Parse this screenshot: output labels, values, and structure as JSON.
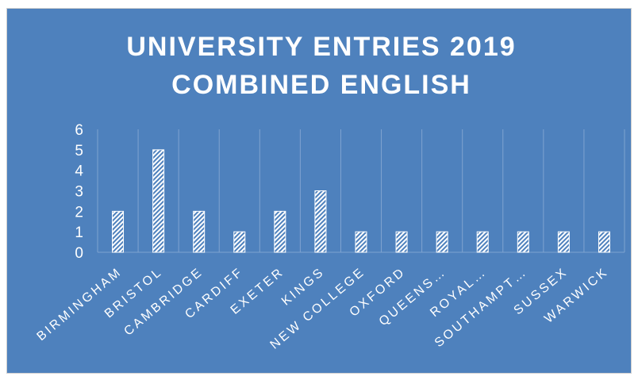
{
  "chart_data": {
    "type": "bar",
    "title_line1": "UNIVERSITY ENTRIES 2019",
    "title_line2": "COMBINED ENGLISH",
    "categories": [
      "BIRMINGHAM",
      "BRISTOL",
      "CAMBRIDGE",
      "CARDIFF",
      "EXETER",
      "KINGS",
      "NEW COLLEGE",
      "OXFORD",
      "QUEENS…",
      "ROYAL…",
      "SOUTHAMPT…",
      "SUSSEX",
      "WARWICK"
    ],
    "values": [
      2,
      5,
      2,
      1,
      2,
      3,
      1,
      1,
      1,
      1,
      1,
      1,
      1
    ],
    "ylim": [
      0,
      6
    ],
    "yticks": [
      "0",
      "1",
      "2",
      "3",
      "4",
      "5",
      "6"
    ],
    "grid": true,
    "colors": {
      "background": "#4e81bd",
      "bar_pattern": "white diagonal hatch",
      "text": "#ffffff"
    }
  }
}
